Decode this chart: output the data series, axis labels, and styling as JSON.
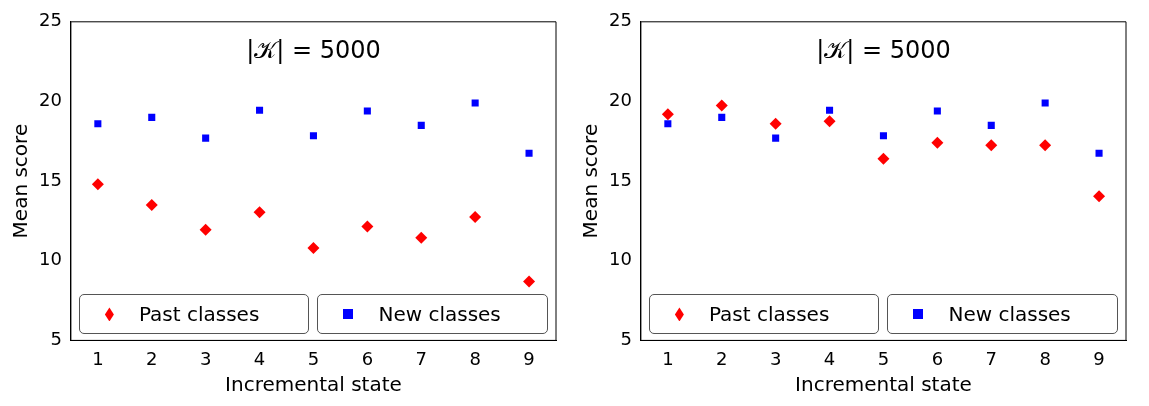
{
  "chart_data": [
    {
      "type": "scatter",
      "annotations": [
        "|𝒦| = 5000"
      ],
      "xlabel": "Incremental state",
      "ylabel": "Mean score",
      "categories": [
        "1",
        "2",
        "3",
        "4",
        "5",
        "6",
        "7",
        "8",
        "9"
      ],
      "ylim": [
        5,
        25
      ],
      "yticks": [
        5,
        10,
        15,
        20,
        25
      ],
      "grid": false,
      "legend": "bottom",
      "series": [
        {
          "name": "Past classes",
          "color": "#ff0000",
          "marker": "diamond",
          "values": [
            14.8,
            13.5,
            11.95,
            13.05,
            10.8,
            12.15,
            11.45,
            12.75,
            8.7
          ]
        },
        {
          "name": "New classes",
          "color": "#0000ff",
          "marker": "square",
          "values": [
            18.6,
            19.0,
            17.7,
            19.45,
            17.85,
            19.4,
            18.5,
            19.9,
            16.75
          ]
        }
      ]
    },
    {
      "type": "scatter",
      "annotations": [
        "|𝒦| = 5000"
      ],
      "xlabel": "Incremental state",
      "ylabel": "Mean score",
      "categories": [
        "1",
        "2",
        "3",
        "4",
        "5",
        "6",
        "7",
        "8",
        "9"
      ],
      "ylim": [
        5,
        25
      ],
      "yticks": [
        5,
        10,
        15,
        20,
        25
      ],
      "grid": false,
      "legend": "bottom",
      "series": [
        {
          "name": "Past classes",
          "color": "#ff0000",
          "marker": "diamond",
          "values": [
            19.2,
            19.75,
            18.6,
            18.75,
            16.4,
            17.4,
            17.25,
            17.25,
            14.05
          ]
        },
        {
          "name": "New classes",
          "color": "#0000ff",
          "marker": "square",
          "values": [
            18.6,
            19.0,
            17.7,
            19.45,
            17.85,
            19.4,
            18.5,
            19.9,
            16.75
          ]
        }
      ]
    }
  ]
}
